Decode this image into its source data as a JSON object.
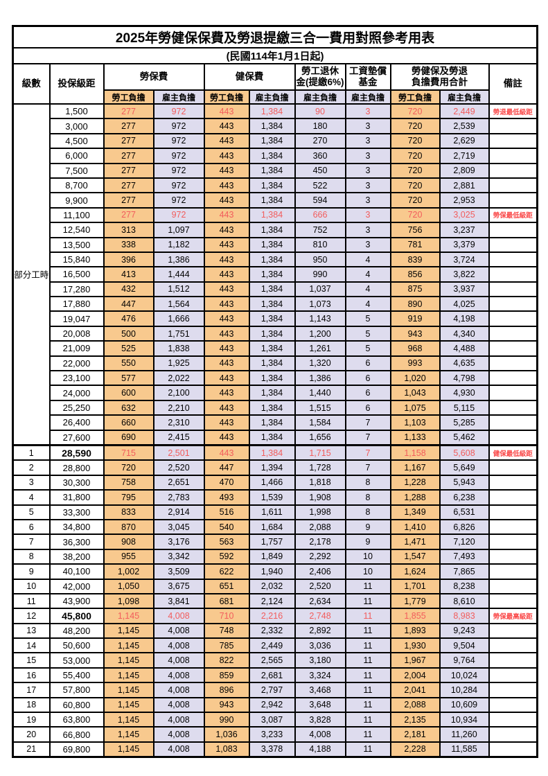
{
  "title": "2025年勞健保保費及勞退提繳三合一費用對照參考用表",
  "subtitle": "(民國114年1月1日起)",
  "columns": {
    "level": "級數",
    "salary": "投保級距",
    "labor_group": "勞保費",
    "health_group": "健保費",
    "pension_line1": "勞工退休",
    "pension_line2": "金(提繳6%)",
    "wage_fund_line1": "工資墊償",
    "wage_fund_line2": "基金",
    "total_line1": "勞健保及勞退",
    "total_line2": "負擔費用合計",
    "remark": "備註",
    "employee_label": "勞工負擔",
    "employer_label": "雇主負擔"
  },
  "group_label": "部分工時",
  "group_rows": 23,
  "colors": {
    "employee_bg": "#F8C98E",
    "employer_bg": "#DEDCEE",
    "highlight_red": "#F25C5C",
    "remark_red": "#FA4A4A",
    "border": "#000000"
  },
  "rows": [
    {
      "level": "",
      "salary": "1,500",
      "labor_emp": "277",
      "labor_er": "972",
      "health_emp": "443",
      "health_er": "1,384",
      "pension_er": "90",
      "wage_fund_er": "3",
      "total_emp": "720",
      "total_er": "2,449",
      "remark": "勞退最低級距",
      "highlight": true,
      "bold": false
    },
    {
      "level": "",
      "salary": "3,000",
      "labor_emp": "277",
      "labor_er": "972",
      "health_emp": "443",
      "health_er": "1,384",
      "pension_er": "180",
      "wage_fund_er": "3",
      "total_emp": "720",
      "total_er": "2,539",
      "remark": "",
      "highlight": false,
      "bold": false
    },
    {
      "level": "",
      "salary": "4,500",
      "labor_emp": "277",
      "labor_er": "972",
      "health_emp": "443",
      "health_er": "1,384",
      "pension_er": "270",
      "wage_fund_er": "3",
      "total_emp": "720",
      "total_er": "2,629",
      "remark": "",
      "highlight": false,
      "bold": false
    },
    {
      "level": "",
      "salary": "6,000",
      "labor_emp": "277",
      "labor_er": "972",
      "health_emp": "443",
      "health_er": "1,384",
      "pension_er": "360",
      "wage_fund_er": "3",
      "total_emp": "720",
      "total_er": "2,719",
      "remark": "",
      "highlight": false,
      "bold": false
    },
    {
      "level": "",
      "salary": "7,500",
      "labor_emp": "277",
      "labor_er": "972",
      "health_emp": "443",
      "health_er": "1,384",
      "pension_er": "450",
      "wage_fund_er": "3",
      "total_emp": "720",
      "total_er": "2,809",
      "remark": "",
      "highlight": false,
      "bold": false
    },
    {
      "level": "",
      "salary": "8,700",
      "labor_emp": "277",
      "labor_er": "972",
      "health_emp": "443",
      "health_er": "1,384",
      "pension_er": "522",
      "wage_fund_er": "3",
      "total_emp": "720",
      "total_er": "2,881",
      "remark": "",
      "highlight": false,
      "bold": false
    },
    {
      "level": "",
      "salary": "9,900",
      "labor_emp": "277",
      "labor_er": "972",
      "health_emp": "443",
      "health_er": "1,384",
      "pension_er": "594",
      "wage_fund_er": "3",
      "total_emp": "720",
      "total_er": "2,953",
      "remark": "",
      "highlight": false,
      "bold": false
    },
    {
      "level": "",
      "salary": "11,100",
      "labor_emp": "277",
      "labor_er": "972",
      "health_emp": "443",
      "health_er": "1,384",
      "pension_er": "666",
      "wage_fund_er": "3",
      "total_emp": "720",
      "total_er": "3,025",
      "remark": "勞保最低級距",
      "highlight": true,
      "bold": false
    },
    {
      "level": "",
      "salary": "12,540",
      "labor_emp": "313",
      "labor_er": "1,097",
      "health_emp": "443",
      "health_er": "1,384",
      "pension_er": "752",
      "wage_fund_er": "3",
      "total_emp": "756",
      "total_er": "3,237",
      "remark": "",
      "highlight": false,
      "bold": false
    },
    {
      "level": "",
      "salary": "13,500",
      "labor_emp": "338",
      "labor_er": "1,182",
      "health_emp": "443",
      "health_er": "1,384",
      "pension_er": "810",
      "wage_fund_er": "3",
      "total_emp": "781",
      "total_er": "3,379",
      "remark": "",
      "highlight": false,
      "bold": false
    },
    {
      "level": "",
      "salary": "15,840",
      "labor_emp": "396",
      "labor_er": "1,386",
      "health_emp": "443",
      "health_er": "1,384",
      "pension_er": "950",
      "wage_fund_er": "4",
      "total_emp": "839",
      "total_er": "3,724",
      "remark": "",
      "highlight": false,
      "bold": false
    },
    {
      "level": "",
      "salary": "16,500",
      "labor_emp": "413",
      "labor_er": "1,444",
      "health_emp": "443",
      "health_er": "1,384",
      "pension_er": "990",
      "wage_fund_er": "4",
      "total_emp": "856",
      "total_er": "3,822",
      "remark": "",
      "highlight": false,
      "bold": false
    },
    {
      "level": "",
      "salary": "17,280",
      "labor_emp": "432",
      "labor_er": "1,512",
      "health_emp": "443",
      "health_er": "1,384",
      "pension_er": "1,037",
      "wage_fund_er": "4",
      "total_emp": "875",
      "total_er": "3,937",
      "remark": "",
      "highlight": false,
      "bold": false
    },
    {
      "level": "",
      "salary": "17,880",
      "labor_emp": "447",
      "labor_er": "1,564",
      "health_emp": "443",
      "health_er": "1,384",
      "pension_er": "1,073",
      "wage_fund_er": "4",
      "total_emp": "890",
      "total_er": "4,025",
      "remark": "",
      "highlight": false,
      "bold": false
    },
    {
      "level": "",
      "salary": "19,047",
      "labor_emp": "476",
      "labor_er": "1,666",
      "health_emp": "443",
      "health_er": "1,384",
      "pension_er": "1,143",
      "wage_fund_er": "5",
      "total_emp": "919",
      "total_er": "4,198",
      "remark": "",
      "highlight": false,
      "bold": false
    },
    {
      "level": "",
      "salary": "20,008",
      "labor_emp": "500",
      "labor_er": "1,751",
      "health_emp": "443",
      "health_er": "1,384",
      "pension_er": "1,200",
      "wage_fund_er": "5",
      "total_emp": "943",
      "total_er": "4,340",
      "remark": "",
      "highlight": false,
      "bold": false
    },
    {
      "level": "",
      "salary": "21,009",
      "labor_emp": "525",
      "labor_er": "1,838",
      "health_emp": "443",
      "health_er": "1,384",
      "pension_er": "1,261",
      "wage_fund_er": "5",
      "total_emp": "968",
      "total_er": "4,488",
      "remark": "",
      "highlight": false,
      "bold": false
    },
    {
      "level": "",
      "salary": "22,000",
      "labor_emp": "550",
      "labor_er": "1,925",
      "health_emp": "443",
      "health_er": "1,384",
      "pension_er": "1,320",
      "wage_fund_er": "6",
      "total_emp": "993",
      "total_er": "4,635",
      "remark": "",
      "highlight": false,
      "bold": false
    },
    {
      "level": "",
      "salary": "23,100",
      "labor_emp": "577",
      "labor_er": "2,022",
      "health_emp": "443",
      "health_er": "1,384",
      "pension_er": "1,386",
      "wage_fund_er": "6",
      "total_emp": "1,020",
      "total_er": "4,798",
      "remark": "",
      "highlight": false,
      "bold": false
    },
    {
      "level": "",
      "salary": "24,000",
      "labor_emp": "600",
      "labor_er": "2,100",
      "health_emp": "443",
      "health_er": "1,384",
      "pension_er": "1,440",
      "wage_fund_er": "6",
      "total_emp": "1,043",
      "total_er": "4,930",
      "remark": "",
      "highlight": false,
      "bold": false
    },
    {
      "level": "",
      "salary": "25,250",
      "labor_emp": "632",
      "labor_er": "2,210",
      "health_emp": "443",
      "health_er": "1,384",
      "pension_er": "1,515",
      "wage_fund_er": "6",
      "total_emp": "1,075",
      "total_er": "5,115",
      "remark": "",
      "highlight": false,
      "bold": false
    },
    {
      "level": "",
      "salary": "26,400",
      "labor_emp": "660",
      "labor_er": "2,310",
      "health_emp": "443",
      "health_er": "1,384",
      "pension_er": "1,584",
      "wage_fund_er": "7",
      "total_emp": "1,103",
      "total_er": "5,285",
      "remark": "",
      "highlight": false,
      "bold": false
    },
    {
      "level": "",
      "salary": "27,600",
      "labor_emp": "690",
      "labor_er": "2,415",
      "health_emp": "443",
      "health_er": "1,384",
      "pension_er": "1,656",
      "wage_fund_er": "7",
      "total_emp": "1,133",
      "total_er": "5,462",
      "remark": "",
      "highlight": false,
      "bold": false
    },
    {
      "level": "1",
      "salary": "28,590",
      "labor_emp": "715",
      "labor_er": "2,501",
      "health_emp": "443",
      "health_er": "1,384",
      "pension_er": "1,715",
      "wage_fund_er": "7",
      "total_emp": "1,158",
      "total_er": "5,608",
      "remark": "健保最低級距",
      "highlight": true,
      "bold": true
    },
    {
      "level": "2",
      "salary": "28,800",
      "labor_emp": "720",
      "labor_er": "2,520",
      "health_emp": "447",
      "health_er": "1,394",
      "pension_er": "1,728",
      "wage_fund_er": "7",
      "total_emp": "1,167",
      "total_er": "5,649",
      "remark": "",
      "highlight": false,
      "bold": false
    },
    {
      "level": "3",
      "salary": "30,300",
      "labor_emp": "758",
      "labor_er": "2,651",
      "health_emp": "470",
      "health_er": "1,466",
      "pension_er": "1,818",
      "wage_fund_er": "8",
      "total_emp": "1,228",
      "total_er": "5,943",
      "remark": "",
      "highlight": false,
      "bold": false
    },
    {
      "level": "4",
      "salary": "31,800",
      "labor_emp": "795",
      "labor_er": "2,783",
      "health_emp": "493",
      "health_er": "1,539",
      "pension_er": "1,908",
      "wage_fund_er": "8",
      "total_emp": "1,288",
      "total_er": "6,238",
      "remark": "",
      "highlight": false,
      "bold": false
    },
    {
      "level": "5",
      "salary": "33,300",
      "labor_emp": "833",
      "labor_er": "2,914",
      "health_emp": "516",
      "health_er": "1,611",
      "pension_er": "1,998",
      "wage_fund_er": "8",
      "total_emp": "1,349",
      "total_er": "6,531",
      "remark": "",
      "highlight": false,
      "bold": false
    },
    {
      "level": "6",
      "salary": "34,800",
      "labor_emp": "870",
      "labor_er": "3,045",
      "health_emp": "540",
      "health_er": "1,684",
      "pension_er": "2,088",
      "wage_fund_er": "9",
      "total_emp": "1,410",
      "total_er": "6,826",
      "remark": "",
      "highlight": false,
      "bold": false
    },
    {
      "level": "7",
      "salary": "36,300",
      "labor_emp": "908",
      "labor_er": "3,176",
      "health_emp": "563",
      "health_er": "1,757",
      "pension_er": "2,178",
      "wage_fund_er": "9",
      "total_emp": "1,471",
      "total_er": "7,120",
      "remark": "",
      "highlight": false,
      "bold": false
    },
    {
      "level": "8",
      "salary": "38,200",
      "labor_emp": "955",
      "labor_er": "3,342",
      "health_emp": "592",
      "health_er": "1,849",
      "pension_er": "2,292",
      "wage_fund_er": "10",
      "total_emp": "1,547",
      "total_er": "7,493",
      "remark": "",
      "highlight": false,
      "bold": false
    },
    {
      "level": "9",
      "salary": "40,100",
      "labor_emp": "1,002",
      "labor_er": "3,509",
      "health_emp": "622",
      "health_er": "1,940",
      "pension_er": "2,406",
      "wage_fund_er": "10",
      "total_emp": "1,624",
      "total_er": "7,865",
      "remark": "",
      "highlight": false,
      "bold": false
    },
    {
      "level": "10",
      "salary": "42,000",
      "labor_emp": "1,050",
      "labor_er": "3,675",
      "health_emp": "651",
      "health_er": "2,032",
      "pension_er": "2,520",
      "wage_fund_er": "11",
      "total_emp": "1,701",
      "total_er": "8,238",
      "remark": "",
      "highlight": false,
      "bold": false
    },
    {
      "level": "11",
      "salary": "43,900",
      "labor_emp": "1,098",
      "labor_er": "3,841",
      "health_emp": "681",
      "health_er": "2,124",
      "pension_er": "2,634",
      "wage_fund_er": "11",
      "total_emp": "1,779",
      "total_er": "8,610",
      "remark": "",
      "highlight": false,
      "bold": false
    },
    {
      "level": "12",
      "salary": "45,800",
      "labor_emp": "1,145",
      "labor_er": "4,008",
      "health_emp": "710",
      "health_er": "2,216",
      "pension_er": "2,748",
      "wage_fund_er": "11",
      "total_emp": "1,855",
      "total_er": "8,983",
      "remark": "勞保最高級距",
      "highlight": true,
      "bold": true
    },
    {
      "level": "13",
      "salary": "48,200",
      "labor_emp": "1,145",
      "labor_er": "4,008",
      "health_emp": "748",
      "health_er": "2,332",
      "pension_er": "2,892",
      "wage_fund_er": "11",
      "total_emp": "1,893",
      "total_er": "9,243",
      "remark": "",
      "highlight": false,
      "bold": false
    },
    {
      "level": "14",
      "salary": "50,600",
      "labor_emp": "1,145",
      "labor_er": "4,008",
      "health_emp": "785",
      "health_er": "2,449",
      "pension_er": "3,036",
      "wage_fund_er": "11",
      "total_emp": "1,930",
      "total_er": "9,504",
      "remark": "",
      "highlight": false,
      "bold": false
    },
    {
      "level": "15",
      "salary": "53,000",
      "labor_emp": "1,145",
      "labor_er": "4,008",
      "health_emp": "822",
      "health_er": "2,565",
      "pension_er": "3,180",
      "wage_fund_er": "11",
      "total_emp": "1,967",
      "total_er": "9,764",
      "remark": "",
      "highlight": false,
      "bold": false
    },
    {
      "level": "16",
      "salary": "55,400",
      "labor_emp": "1,145",
      "labor_er": "4,008",
      "health_emp": "859",
      "health_er": "2,681",
      "pension_er": "3,324",
      "wage_fund_er": "11",
      "total_emp": "2,004",
      "total_er": "10,024",
      "remark": "",
      "highlight": false,
      "bold": false
    },
    {
      "level": "17",
      "salary": "57,800",
      "labor_emp": "1,145",
      "labor_er": "4,008",
      "health_emp": "896",
      "health_er": "2,797",
      "pension_er": "3,468",
      "wage_fund_er": "11",
      "total_emp": "2,041",
      "total_er": "10,284",
      "remark": "",
      "highlight": false,
      "bold": false
    },
    {
      "level": "18",
      "salary": "60,800",
      "labor_emp": "1,145",
      "labor_er": "4,008",
      "health_emp": "943",
      "health_er": "2,942",
      "pension_er": "3,648",
      "wage_fund_er": "11",
      "total_emp": "2,088",
      "total_er": "10,609",
      "remark": "",
      "highlight": false,
      "bold": false
    },
    {
      "level": "19",
      "salary": "63,800",
      "labor_emp": "1,145",
      "labor_er": "4,008",
      "health_emp": "990",
      "health_er": "3,087",
      "pension_er": "3,828",
      "wage_fund_er": "11",
      "total_emp": "2,135",
      "total_er": "10,934",
      "remark": "",
      "highlight": false,
      "bold": false
    },
    {
      "level": "20",
      "salary": "66,800",
      "labor_emp": "1,145",
      "labor_er": "4,008",
      "health_emp": "1,036",
      "health_er": "3,233",
      "pension_er": "4,008",
      "wage_fund_er": "11",
      "total_emp": "2,181",
      "total_er": "11,260",
      "remark": "",
      "highlight": false,
      "bold": false
    },
    {
      "level": "21",
      "salary": "69,800",
      "labor_emp": "1,145",
      "labor_er": "4,008",
      "health_emp": "1,083",
      "health_er": "3,378",
      "pension_er": "4,188",
      "wage_fund_er": "11",
      "total_emp": "2,228",
      "total_er": "11,585",
      "remark": "",
      "highlight": false,
      "bold": false
    }
  ]
}
